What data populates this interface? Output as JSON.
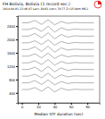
{
  "chart_data": {
    "type": "line",
    "title": "FH Bolivia, Bolivia (1 record sec.)",
    "subtitle": "2014-04-01 23:46:47 Lat=-19.61 Lon=-70.77 Z=25.0km M8.2",
    "x_label": "Median STF duration (sec)",
    "x": [
      0,
      8,
      16,
      24,
      32,
      40,
      48,
      56,
      64,
      72,
      80,
      88
    ],
    "xlim": [
      -5,
      95
    ],
    "xticks": [
      0,
      20,
      40,
      60,
      80
    ],
    "ylim": [
      100,
      2700
    ],
    "yticks": [
      400,
      800,
      1200,
      1600,
      2000,
      2400
    ],
    "color": "#7f7f7f",
    "series": [
      {
        "values": [
          2500,
          2500,
          2570,
          2450,
          2590,
          2440,
          2540,
          2480,
          2510,
          2500,
          2500,
          2500
        ]
      },
      {
        "values": [
          2300,
          2300,
          2350,
          2240,
          2400,
          2220,
          2350,
          2280,
          2310,
          2300,
          2300,
          2300
        ]
      },
      {
        "values": [
          2100,
          2100,
          2180,
          2050,
          2200,
          2020,
          2150,
          2070,
          2110,
          2100,
          2100,
          2100
        ]
      },
      {
        "values": [
          1900,
          1900,
          1960,
          1850,
          1990,
          1830,
          1940,
          1880,
          1910,
          1900,
          1900,
          1900
        ]
      },
      {
        "values": [
          1700,
          1700,
          1780,
          1640,
          1800,
          1620,
          1750,
          1680,
          1710,
          1700,
          1700,
          1700
        ]
      },
      {
        "values": [
          1500,
          1500,
          1570,
          1450,
          1590,
          1430,
          1540,
          1480,
          1510,
          1500,
          1500,
          1500
        ]
      },
      {
        "values": [
          1300,
          1300,
          1360,
          1250,
          1400,
          1230,
          1340,
          1280,
          1310,
          1300,
          1300,
          1300
        ]
      },
      {
        "values": [
          1100,
          1100,
          1170,
          1040,
          1190,
          1030,
          1150,
          1070,
          1110,
          1100,
          1100,
          1100
        ]
      },
      {
        "values": [
          900,
          900,
          960,
          850,
          990,
          830,
          940,
          880,
          910,
          900,
          900,
          900
        ]
      },
      {
        "values": [
          700,
          700,
          770,
          650,
          790,
          640,
          740,
          680,
          710,
          700,
          700,
          700
        ]
      },
      {
        "values": [
          500,
          500,
          560,
          450,
          580,
          430,
          540,
          480,
          510,
          500,
          500,
          500
        ]
      }
    ]
  }
}
